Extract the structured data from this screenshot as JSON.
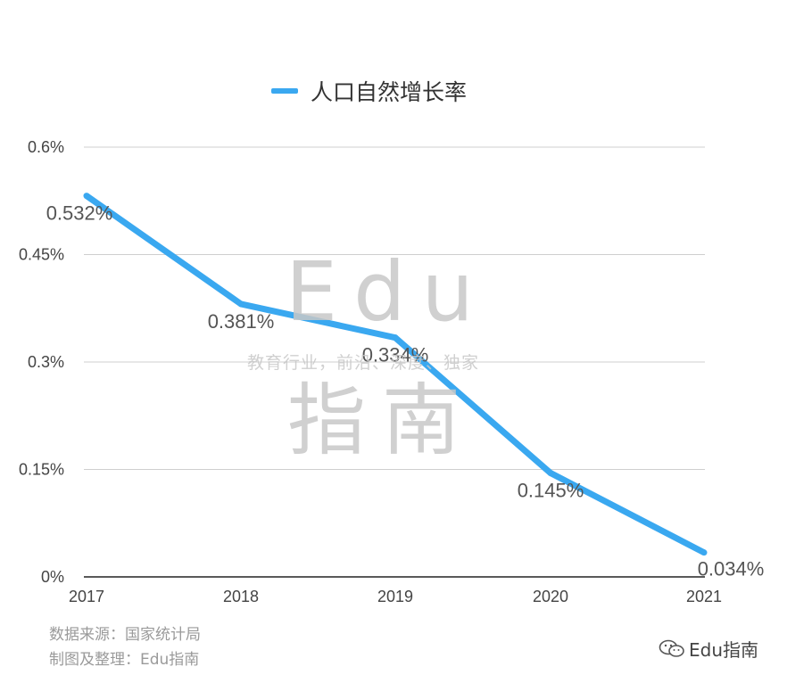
{
  "chart_data": {
    "type": "line",
    "categories": [
      "2017",
      "2018",
      "2019",
      "2020",
      "2021"
    ],
    "series": [
      {
        "name": "人口自然增长率",
        "values": [
          0.532,
          0.381,
          0.334,
          0.145,
          0.034
        ],
        "labels": [
          "0.532%",
          "0.381%",
          "0.334%",
          "0.145%",
          "0.034%"
        ],
        "color": "#3aa8f0"
      }
    ],
    "yticks": [
      {
        "value": 0,
        "label": "0%"
      },
      {
        "value": 0.15,
        "label": "0.15%"
      },
      {
        "value": 0.3,
        "label": "0.3%"
      },
      {
        "value": 0.45,
        "label": "0.45%"
      },
      {
        "value": 0.6,
        "label": "0.6%"
      }
    ],
    "ylim": [
      0,
      0.6
    ],
    "grid": true,
    "legend_position": "top-center"
  },
  "watermark": {
    "top": "Edu",
    "tagline": "教育行业，前沿、深度、独家",
    "bottom": "指南"
  },
  "source": {
    "line1": "数据来源：国家统计局",
    "line2": "制图及整理：Edu指南"
  },
  "brand": {
    "icon": "wechat-icon",
    "text": "Edu指南"
  }
}
